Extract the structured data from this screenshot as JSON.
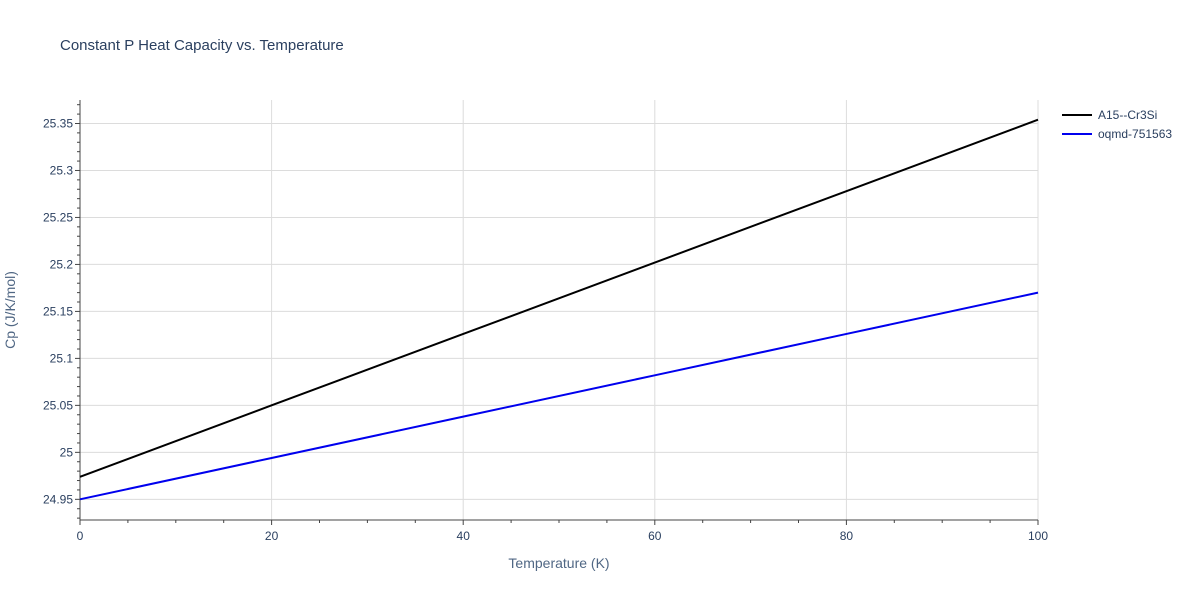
{
  "chart_data": {
    "type": "line",
    "title": "Constant P Heat Capacity vs. Temperature",
    "xlabel": "Temperature (K)",
    "ylabel": "Cp (J/K/mol)",
    "xlim": [
      0,
      100
    ],
    "ylim": [
      24.928,
      25.375
    ],
    "x_ticks": [
      0,
      20,
      40,
      60,
      80,
      100
    ],
    "x_tick_labels": [
      "0",
      "20",
      "40",
      "60",
      "80",
      "100"
    ],
    "y_ticks": [
      24.95,
      25,
      25.05,
      25.1,
      25.15,
      25.2,
      25.25,
      25.3,
      25.35
    ],
    "y_tick_labels": [
      "24.95",
      "25",
      "25.05",
      "25.1",
      "25.15",
      "25.2",
      "25.25",
      "25.3",
      "25.35"
    ],
    "grid": true,
    "legend_position": "top-right",
    "x": [
      0,
      20,
      40,
      60,
      80,
      100
    ],
    "series": [
      {
        "name": "A15--Cr3Si",
        "color": "#000000",
        "values": [
          24.974,
          25.05,
          25.126,
          25.202,
          25.278,
          25.354
        ]
      },
      {
        "name": "oqmd-751563",
        "color": "#0000ee",
        "values": [
          24.95,
          24.994,
          25.038,
          25.082,
          25.126,
          25.17
        ]
      }
    ]
  }
}
